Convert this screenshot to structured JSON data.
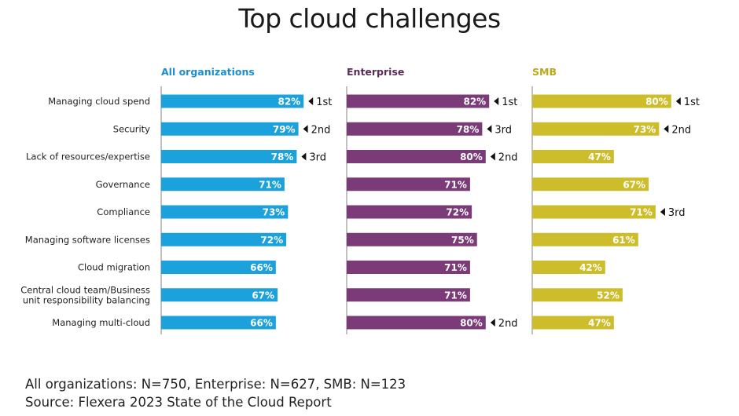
{
  "chart_data": {
    "type": "bar",
    "orientation": "horizontal",
    "title": "Top cloud challenges",
    "categories": [
      "Managing cloud spend",
      "Security",
      "Lack of resources/expertise",
      "Governance",
      "Compliance",
      "Managing software licenses",
      "Cloud migration",
      "Central cloud team/Business|unit responsibility balancing",
      "Managing multi-cloud"
    ],
    "unit": "%",
    "xlim": [
      0,
      100
    ],
    "grid": false,
    "series": [
      {
        "name": "All organizations",
        "color": "#1ba1dc",
        "label_color": "#1b8fcc",
        "values": [
          82,
          79,
          78,
          71,
          73,
          72,
          66,
          67,
          66
        ],
        "ranks": [
          "1st",
          "2nd",
          "3rd",
          "",
          "",
          "",
          "",
          "",
          ""
        ]
      },
      {
        "name": "Enterprise",
        "color": "#7b3a78",
        "label_color": "#5a2a58",
        "values": [
          82,
          78,
          80,
          71,
          72,
          75,
          71,
          71,
          80
        ],
        "ranks": [
          "1st",
          "3rd",
          "2nd",
          "",
          "",
          "",
          "",
          "",
          "2nd"
        ]
      },
      {
        "name": "SMB",
        "color": "#cdbd2a",
        "label_color": "#b8a81a",
        "values": [
          80,
          73,
          47,
          67,
          71,
          61,
          42,
          52,
          47
        ],
        "ranks": [
          "1st",
          "2nd",
          "",
          "",
          "3rd",
          "",
          "",
          "",
          ""
        ]
      }
    ]
  },
  "footer": {
    "sample": "All organizations: N=750, Enterprise: N=627, SMB: N=123",
    "source": "Source: Flexera 2023 State of the Cloud Report"
  }
}
